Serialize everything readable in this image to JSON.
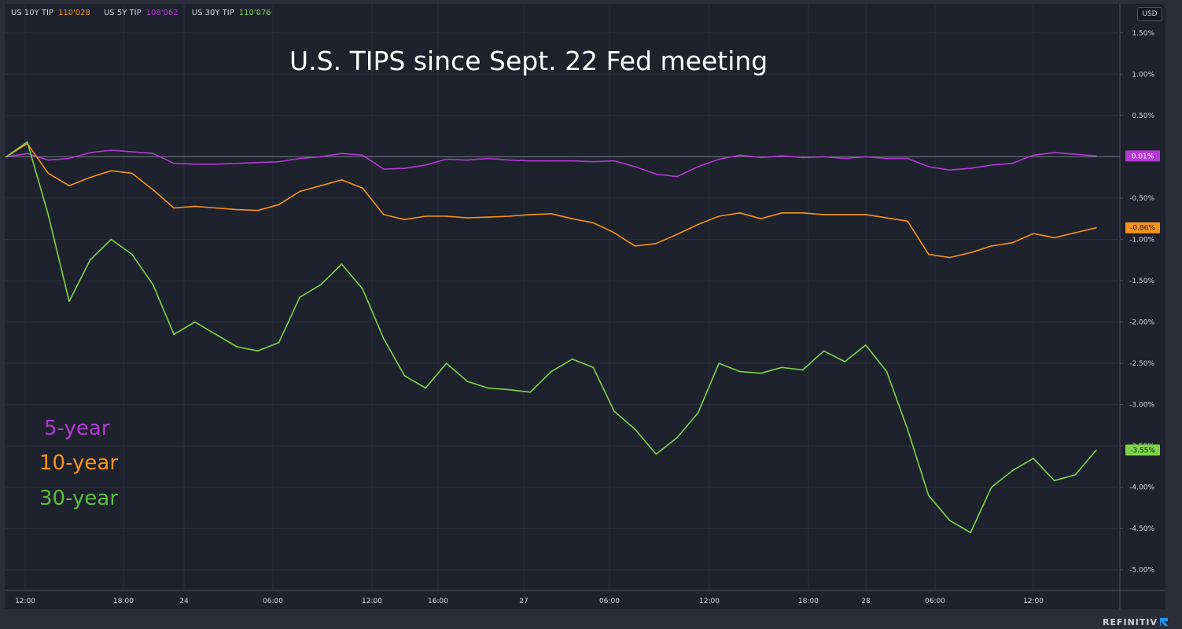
{
  "chart_data": {
    "type": "line",
    "title": "U.S. TIPS since Sept. 22 Fed meeting",
    "currency_label": "USD",
    "brand": "REFINITIV",
    "legend": [
      {
        "symbol": "US 10Y TIP",
        "price": "110'028",
        "color": "#f7931a"
      },
      {
        "symbol": "US 5Y TIP",
        "price": "108'062",
        "color": "#b33ad6"
      },
      {
        "symbol": "US 30Y TIP",
        "price": "110'076",
        "color": "#7ed348"
      }
    ],
    "annotations": [
      {
        "text": "5-year",
        "color": "#b33ad6"
      },
      {
        "text": "10-year",
        "color": "#f7931a"
      },
      {
        "text": "30-year",
        "color": "#5bbf3a"
      }
    ],
    "x_tick_labels": [
      "12:00",
      "18:00",
      "24",
      "06:00",
      "12:00",
      "16:00",
      "27",
      "06:00",
      "12:00",
      "18:00",
      "28",
      "06:00",
      "12:00"
    ],
    "y_tick_labels": [
      "1.50%",
      "1.00%",
      "0.50%",
      "-0.50%",
      "-1.00%",
      "-1.50%",
      "-2.00%",
      "-2.50%",
      "-3.00%",
      "-3.50%",
      "-4.00%",
      "-4.50%",
      "-5.00%"
    ],
    "y_tick_values": [
      1.5,
      1.0,
      0.5,
      -0.5,
      -1.0,
      -1.5,
      -2.0,
      -2.5,
      -3.0,
      -3.5,
      -4.0,
      -4.5,
      -5.0
    ],
    "ylim": [
      -5.25,
      1.85
    ],
    "x_count": 53,
    "series": [
      {
        "name": "5-year",
        "color": "#b33ad6",
        "last_label": "0.01%",
        "values": [
          0.0,
          0.04,
          -0.04,
          -0.02,
          0.05,
          0.08,
          0.06,
          0.04,
          -0.08,
          -0.09,
          -0.09,
          -0.08,
          -0.07,
          -0.06,
          -0.02,
          0.0,
          0.04,
          0.02,
          -0.15,
          -0.14,
          -0.1,
          -0.03,
          -0.04,
          -0.02,
          -0.04,
          -0.05,
          -0.05,
          -0.05,
          -0.06,
          -0.05,
          -0.12,
          -0.21,
          -0.24,
          -0.12,
          -0.03,
          0.02,
          -0.01,
          0.01,
          -0.01,
          0.0,
          -0.02,
          0.0,
          -0.02,
          -0.02,
          -0.12,
          -0.16,
          -0.14,
          -0.1,
          -0.08,
          0.02,
          0.05,
          0.03,
          0.01
        ]
      },
      {
        "name": "10-year",
        "color": "#f7931a",
        "last_label": "-0.86%",
        "values": [
          0.0,
          0.16,
          -0.2,
          -0.35,
          -0.25,
          -0.17,
          -0.2,
          -0.4,
          -0.62,
          -0.6,
          -0.62,
          -0.64,
          -0.65,
          -0.58,
          -0.42,
          -0.35,
          -0.28,
          -0.38,
          -0.7,
          -0.76,
          -0.72,
          -0.72,
          -0.74,
          -0.73,
          -0.72,
          -0.7,
          -0.69,
          -0.75,
          -0.8,
          -0.92,
          -1.08,
          -1.05,
          -0.94,
          -0.82,
          -0.72,
          -0.68,
          -0.75,
          -0.68,
          -0.68,
          -0.7,
          -0.7,
          -0.7,
          -0.74,
          -0.78,
          -1.18,
          -1.22,
          -1.16,
          -1.08,
          -1.04,
          -0.93,
          -0.98,
          -0.92,
          -0.86
        ]
      },
      {
        "name": "30-year",
        "color": "#7ed348",
        "last_label": "-3.55%",
        "values": [
          0.0,
          0.18,
          -0.7,
          -1.75,
          -1.25,
          -1.0,
          -1.18,
          -1.55,
          -2.15,
          -2.0,
          -2.15,
          -2.3,
          -2.35,
          -2.25,
          -1.7,
          -1.55,
          -1.3,
          -1.6,
          -2.2,
          -2.65,
          -2.8,
          -2.5,
          -2.72,
          -2.8,
          -2.82,
          -2.85,
          -2.6,
          -2.45,
          -2.55,
          -3.08,
          -3.3,
          -3.6,
          -3.4,
          -3.1,
          -2.5,
          -2.6,
          -2.62,
          -2.55,
          -2.58,
          -2.35,
          -2.48,
          -2.28,
          -2.6,
          -3.3,
          -4.1,
          -4.4,
          -4.55,
          -4.0,
          -3.8,
          -3.65,
          -3.92,
          -3.85,
          -3.55
        ]
      }
    ]
  }
}
